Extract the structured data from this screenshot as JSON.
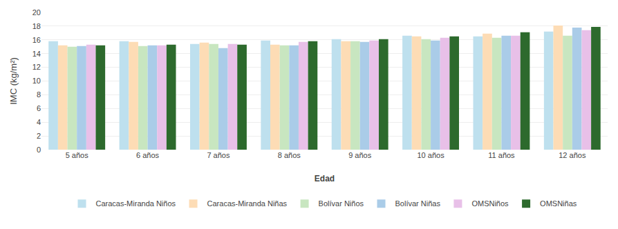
{
  "chart_data": {
    "type": "bar",
    "categories": [
      "5 años",
      "6 años",
      "7 años",
      "8 años",
      "9 años",
      "10 años",
      "11 años",
      "12 años"
    ],
    "series": [
      {
        "name": "Caracas-Miranda Niños",
        "color": "#BEE0EE",
        "values": [
          15.8,
          15.8,
          15.4,
          15.9,
          16.1,
          16.6,
          16.5,
          17.2
        ]
      },
      {
        "name": "Caracas-Miranda Niñas",
        "color": "#FDDCB5",
        "values": [
          15.2,
          15.7,
          15.6,
          15.3,
          15.8,
          16.5,
          16.9,
          18.1
        ]
      },
      {
        "name": "Bolívar Niños",
        "color": "#C8E6C0",
        "values": [
          15.0,
          15.1,
          15.4,
          15.2,
          15.8,
          16.1,
          16.3,
          16.6
        ]
      },
      {
        "name": "Bolívar Niñas",
        "color": "#AACCE8",
        "values": [
          15.1,
          15.2,
          14.8,
          15.2,
          15.7,
          15.9,
          16.6,
          17.8
        ]
      },
      {
        "name": "OMSNiños",
        "color": "#E8C0E8",
        "values": [
          15.3,
          15.2,
          15.4,
          15.7,
          15.9,
          16.3,
          16.6,
          17.4
        ]
      },
      {
        "name": "OMSNiñas",
        "color": "#2D6A2D",
        "values": [
          15.2,
          15.3,
          15.3,
          15.8,
          16.1,
          16.5,
          17.1,
          17.9
        ]
      }
    ],
    "xlabel": "Edad",
    "ylabel": "IMC (kg/m²)",
    "ylim": [
      0,
      20
    ],
    "yticks": [
      0,
      2,
      4,
      6,
      8,
      10,
      12,
      14,
      16,
      18,
      20
    ],
    "grid": true,
    "legend": "bottom"
  }
}
